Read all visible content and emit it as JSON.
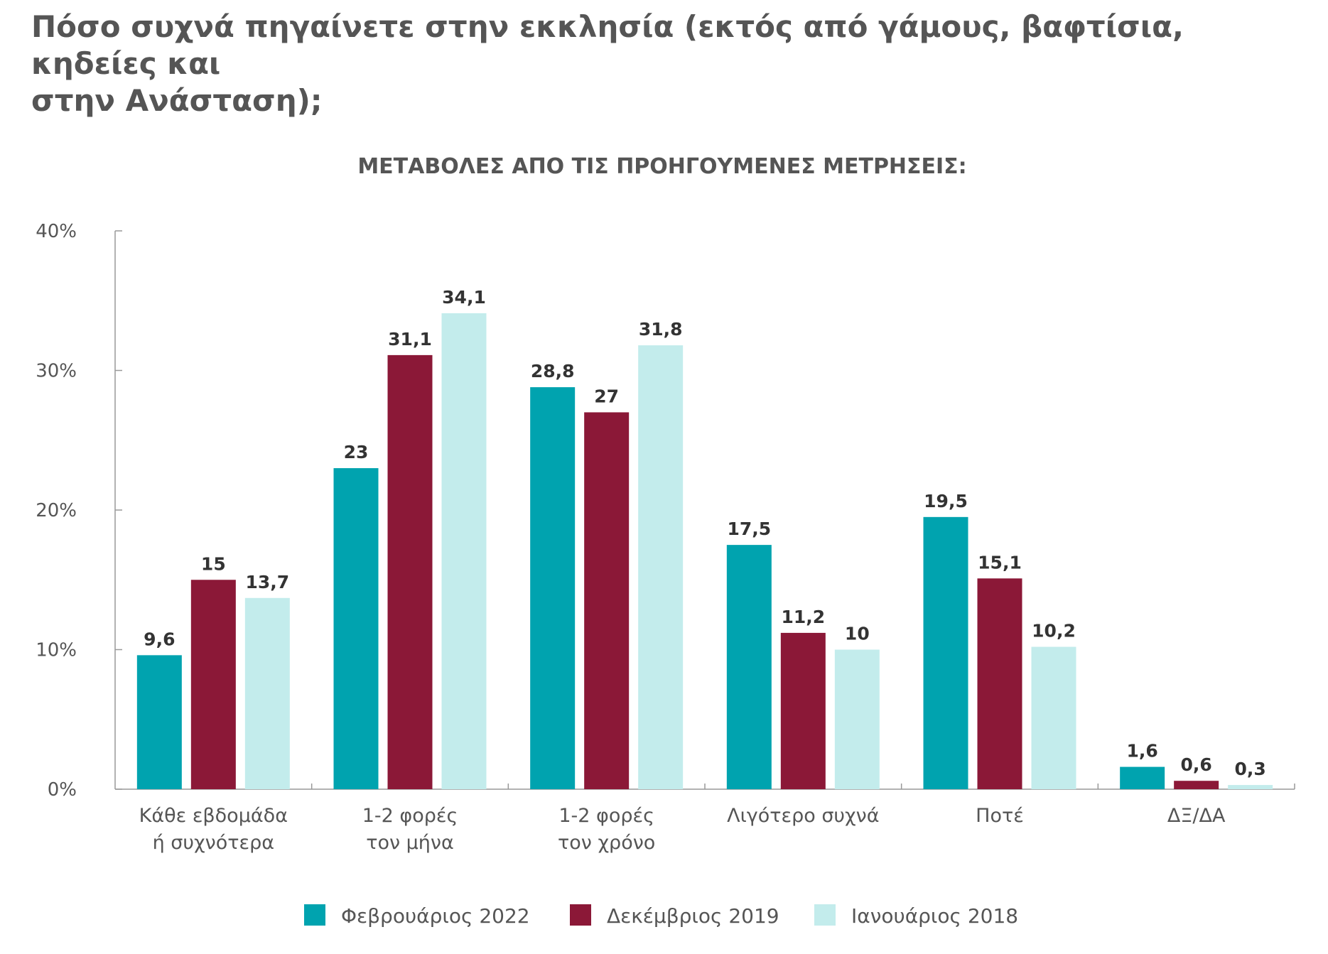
{
  "title_line1": "Πόσο συχνά πηγαίνετε στην εκκλησία (εκτός από γάμους, βαφτίσια, κηδείες και",
  "title_line2": "στην Ανάσταση);",
  "chart_data": {
    "type": "bar",
    "subtitle": "ΜΕΤΑΒΟΛΕΣ ΑΠΟ ΤΙΣ ΠΡΟΗΓΟΥΜΕΝΕΣ ΜΕΤΡΗΣΕΙΣ:",
    "categories": [
      [
        "Κάθε εβδομάδα",
        "ή συχνότερα"
      ],
      [
        "1-2 φορές",
        "τον μήνα"
      ],
      [
        "1-2 φορές",
        "τον χρόνο"
      ],
      [
        "Λιγότερο συχνά"
      ],
      [
        "Ποτέ"
      ],
      [
        "ΔΞ/ΔΑ"
      ]
    ],
    "series": [
      {
        "name": "Φεβρουάριος 2022",
        "color": "#00A3AF",
        "values": [
          9.6,
          23,
          28.8,
          17.5,
          19.5,
          1.6
        ],
        "labels": [
          "9,6",
          "23",
          "28,8",
          "17,5",
          "19,5",
          "1,6"
        ]
      },
      {
        "name": "Δεκέμβριος 2019",
        "color": "#8B1837",
        "values": [
          15,
          31.1,
          27,
          11.2,
          15.1,
          0.6
        ],
        "labels": [
          "15",
          "31,1",
          "27",
          "11,2",
          "15,1",
          "0,6"
        ]
      },
      {
        "name": "Ιανουάριος 2018",
        "color": "#C3ECEC",
        "values": [
          13.7,
          34.1,
          31.8,
          10,
          10.2,
          0.3
        ],
        "labels": [
          "13,7",
          "34,1",
          "31,8",
          "10",
          "10,2",
          "0,3"
        ]
      }
    ],
    "y_ticks": [
      "0%",
      "10%",
      "20%",
      "30%",
      "40%"
    ],
    "ylim": [
      0,
      40
    ],
    "grid": false,
    "legend_position": "bottom"
  }
}
